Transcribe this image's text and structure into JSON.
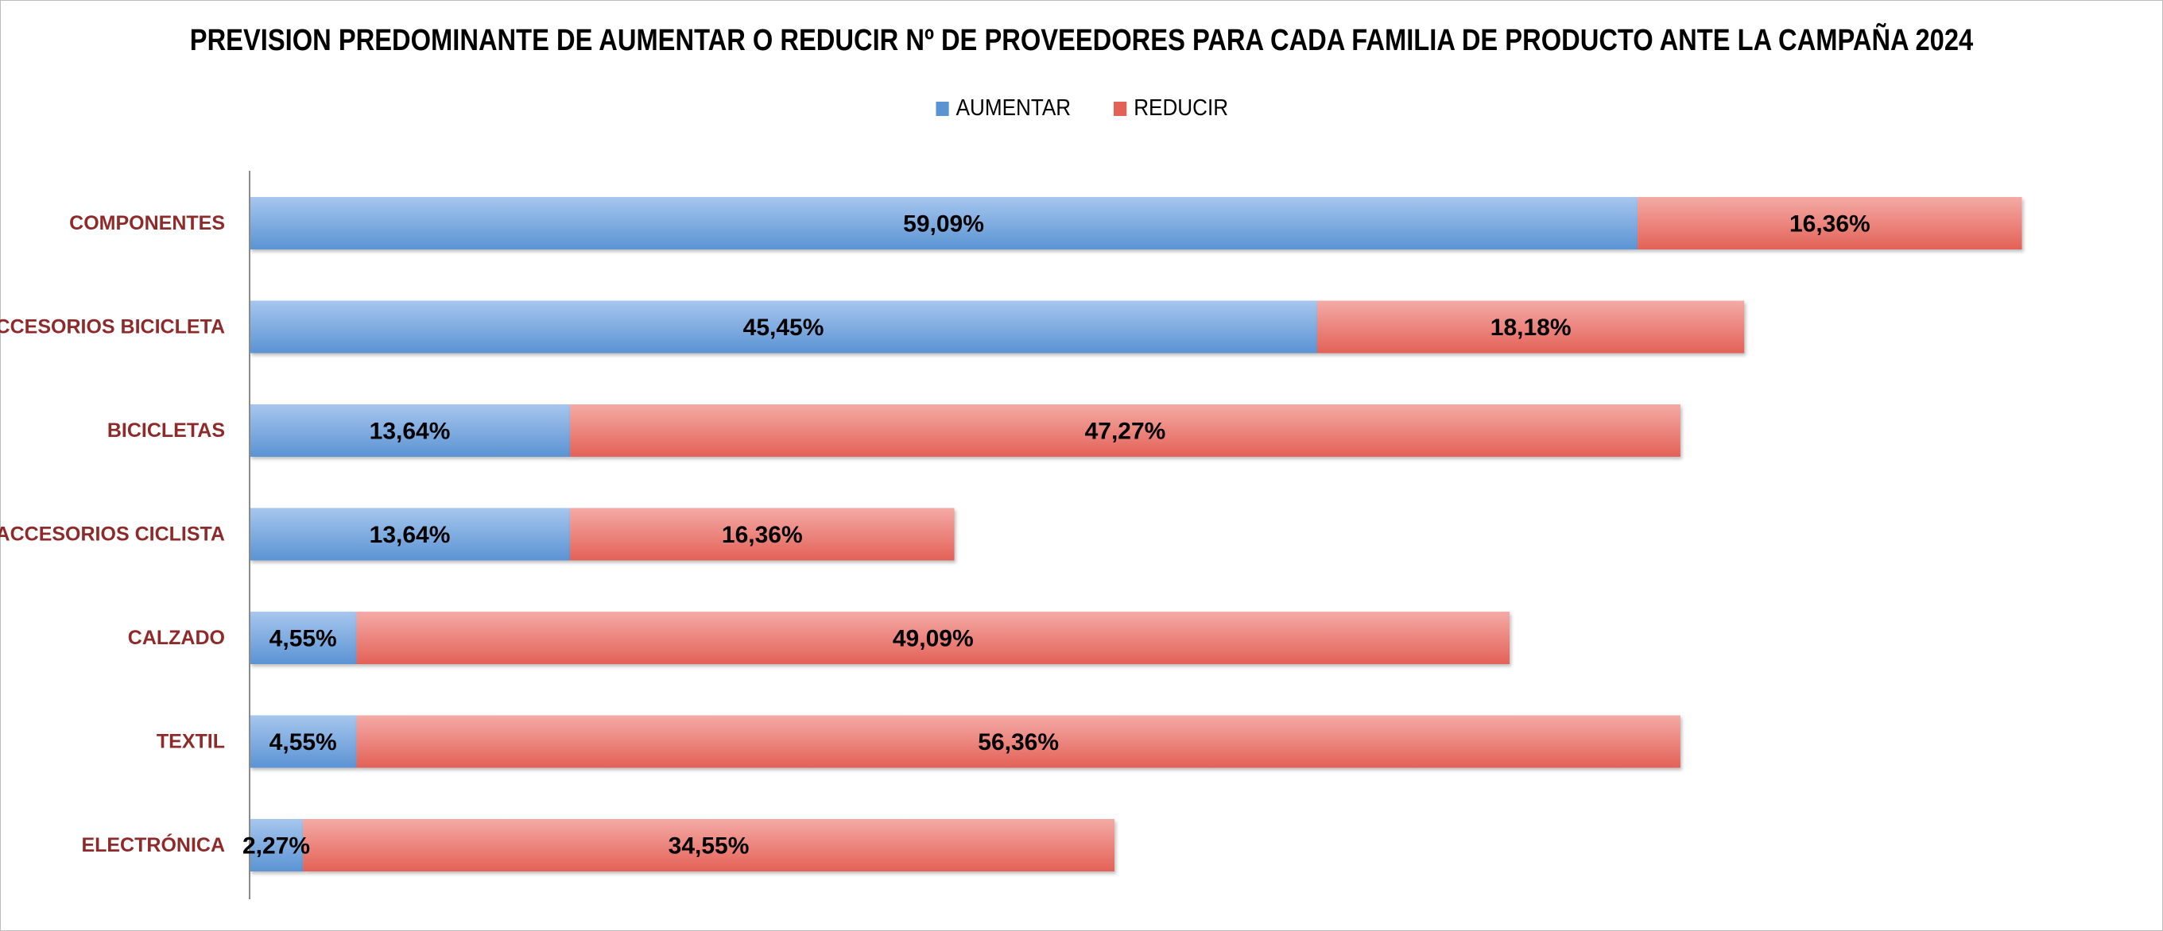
{
  "chart_data": {
    "type": "bar",
    "orientation": "horizontal",
    "stacked": true,
    "title": "PREVISION PREDOMINANTE DE AUMENTAR O REDUCIR Nº DE PROVEEDORES PARA CADA FAMILIA DE PRODUCTO ANTE LA CAMPAÑA 2024",
    "categories": [
      "COMPONENTES",
      "ACCESORIOS BICICLETA",
      "BICICLETAS",
      "ACCESORIOS CICLISTA",
      "CALZADO",
      "TEXTIL",
      "ELECTRÓNICA"
    ],
    "series": [
      {
        "name": "AUMENTAR",
        "values": [
          59.09,
          45.45,
          13.64,
          13.64,
          4.55,
          4.55,
          2.27
        ],
        "labels": [
          "59,09%",
          "45,45%",
          "13,64%",
          "13,64%",
          "4,55%",
          "4,55%",
          "2,27%"
        ],
        "color": "#5b93d3"
      },
      {
        "name": "REDUCIR",
        "values": [
          16.36,
          18.18,
          47.27,
          16.36,
          49.09,
          56.36,
          34.55
        ],
        "labels": [
          "16,36%",
          "18,18%",
          "47,27%",
          "16,36%",
          "49,09%",
          "56,36%",
          "34,55%"
        ],
        "color": "#e36157"
      }
    ],
    "xlim": [
      0,
      80
    ],
    "unit": "%",
    "grid": false,
    "legend_position": "top"
  },
  "colors": {
    "aumentar_top": "#a6c6ee",
    "aumentar_bottom": "#5b93d3",
    "reducir_top": "#f4aaa5",
    "reducir_bottom": "#e36157",
    "category_text": "#8e2a2a"
  }
}
